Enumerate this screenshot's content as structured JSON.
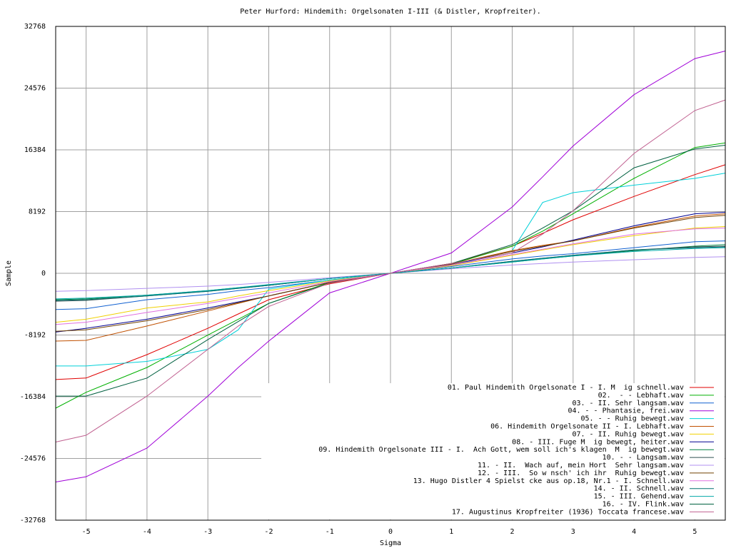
{
  "chart_data": {
    "type": "line",
    "title": "Peter Hurford: Hindemith: Orgelsonaten I-III (& Distler, Kropfreiter).",
    "x_label": "Sigma",
    "y_label": "Sample",
    "xlim": [
      -5.5,
      5.5
    ],
    "ylim": [
      -32768,
      32768
    ],
    "xticks": [
      -5,
      -4,
      -3,
      -2,
      -1,
      0,
      1,
      2,
      3,
      4,
      5
    ],
    "yticks": [
      -32768,
      -24576,
      -16384,
      -8192,
      0,
      8192,
      16384,
      24576,
      32768
    ],
    "grid": true,
    "legend": "lower right",
    "x": [
      -5.5,
      -5,
      -4,
      -3,
      -2.5,
      -2,
      -1,
      0,
      1,
      2,
      2.5,
      3,
      4,
      5,
      5.5
    ],
    "series": [
      {
        "name": "01. Paul Hindemith Orgelsonate I - I. M  ig schnell.wav",
        "color": "#e00000",
        "values": [
          -14100,
          -13900,
          -10800,
          -7300,
          -5400,
          -3500,
          -1400,
          0,
          1300,
          3600,
          5300,
          7100,
          10200,
          13100,
          14400
        ]
      },
      {
        "name": "02.  - - Lebhaft.wav",
        "color": "#00b000",
        "values": [
          -17900,
          -15800,
          -12500,
          -8200,
          -6100,
          -4000,
          -1200,
          0,
          1200,
          3600,
          5600,
          7900,
          12600,
          16700,
          17300
        ]
      },
      {
        "name": "03. - II. Sehr langsam.wav",
        "color": "#1060d0",
        "values": [
          -4800,
          -4700,
          -3500,
          -2800,
          -2300,
          -1900,
          -900,
          0,
          900,
          1900,
          2300,
          2600,
          3400,
          4200,
          4300
        ]
      },
      {
        "name": "04. - - Phantasie, frei.wav",
        "color": "#a000d8",
        "values": [
          -27700,
          -27000,
          -23200,
          -16300,
          -12500,
          -9000,
          -2600,
          0,
          2700,
          8800,
          12800,
          16900,
          23700,
          28500,
          29500
        ]
      },
      {
        "name": "05. - - Ruhig bewegt.wav",
        "color": "#00d0d8",
        "values": [
          -12300,
          -12300,
          -11700,
          -10100,
          -7500,
          -2100,
          -900,
          0,
          1000,
          3000,
          9400,
          10700,
          11700,
          12600,
          13300
        ]
      },
      {
        "name": "06. Hindemith Orgelsonate II - I. Lebhaft.wav",
        "color": "#c05000",
        "values": [
          -9000,
          -8900,
          -7000,
          -5000,
          -4000,
          -3000,
          -1200,
          0,
          1200,
          3000,
          3700,
          4300,
          6100,
          7600,
          7900
        ]
      },
      {
        "name": "07. - II. Ruhig bewegt.wav",
        "color": "#f0d000",
        "values": [
          -6500,
          -6100,
          -4600,
          -3800,
          -3000,
          -2300,
          -1000,
          0,
          1000,
          2400,
          3100,
          3800,
          5000,
          6000,
          6200
        ]
      },
      {
        "name": "08. - III. Fuge M  ig bewegt, heiter.wav",
        "color": "#000090",
        "values": [
          -7800,
          -7300,
          -6100,
          -4600,
          -3800,
          -3000,
          -1200,
          0,
          1200,
          2700,
          3500,
          4400,
          6300,
          7900,
          8100
        ]
      },
      {
        "name": "09. Hindemith Orgelsonate III - I.  Ach Gott, wem soll ich's klagen  M  ig bewegt.wav",
        "color": "#008040",
        "values": [
          -3500,
          -3400,
          -2900,
          -2300,
          -1900,
          -1600,
          -700,
          0,
          700,
          1500,
          1900,
          2300,
          3000,
          3600,
          3800
        ]
      },
      {
        "name": "10. - - Langsam.wav",
        "color": "#305050",
        "values": [
          -3700,
          -3600,
          -3000,
          -2400,
          -2000,
          -1600,
          -700,
          0,
          700,
          1600,
          2000,
          2400,
          3100,
          3500,
          3600
        ]
      },
      {
        "name": "11. - II.  Wach auf, mein Hort  Sehr langsam.wav",
        "color": "#b090f0",
        "values": [
          -2400,
          -2300,
          -2000,
          -1700,
          -1500,
          -1200,
          -600,
          0,
          600,
          1100,
          1300,
          1500,
          1800,
          2100,
          2200
        ]
      },
      {
        "name": "12. - III.  So w nsch' ich ihr  Ruhig bewegt.wav",
        "color": "#704000",
        "values": [
          -7700,
          -7500,
          -6300,
          -4800,
          -3900,
          -3000,
          -1200,
          0,
          1200,
          2900,
          3600,
          4300,
          6000,
          7400,
          7700
        ]
      },
      {
        "name": "13. Hugo Distler 4 Spielst cke aus op.18, Nr.1 - I. Schnell.wav",
        "color": "#e070e0",
        "values": [
          -6800,
          -6500,
          -5200,
          -4000,
          -3300,
          -2600,
          -1100,
          0,
          1100,
          2500,
          3200,
          3900,
          5200,
          5900,
          6000
        ]
      },
      {
        "name": "14. - II. Schnell.wav",
        "color": "#007070",
        "values": [
          -3600,
          -3500,
          -3000,
          -2400,
          -2000,
          -1600,
          -700,
          0,
          700,
          1600,
          2000,
          2400,
          3100,
          3400,
          3500
        ]
      },
      {
        "name": "15. - III. Gehend.wav",
        "color": "#00a8a8",
        "values": [
          -3400,
          -3300,
          -2900,
          -2300,
          -1900,
          -1500,
          -700,
          0,
          700,
          1500,
          1900,
          2300,
          2900,
          3300,
          3400
        ]
      },
      {
        "name": "16. - IV. Flink.wav",
        "color": "#006040",
        "values": [
          -16300,
          -16300,
          -13900,
          -8800,
          -6400,
          -4000,
          -1300,
          0,
          1300,
          3800,
          6000,
          8300,
          14000,
          16500,
          17000
        ]
      },
      {
        "name": "17. Augustinus Kropfreiter (1936) Toccata francese.wav",
        "color": "#c06090",
        "values": [
          -22400,
          -21500,
          -16300,
          -10100,
          -7000,
          -4400,
          -1300,
          0,
          1300,
          2700,
          5200,
          8300,
          15900,
          21600,
          23000
        ]
      }
    ]
  }
}
